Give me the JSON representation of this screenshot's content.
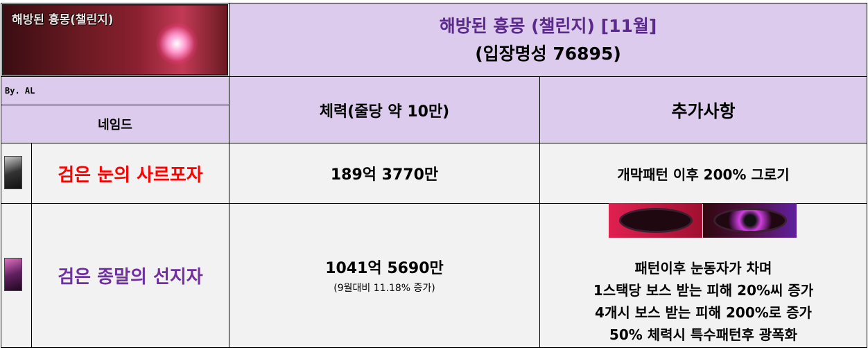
{
  "header": {
    "banner_text": "해방된 흉몽(챌린지)",
    "title": "해방된 흉몽 (챌린지) [11월]",
    "subtitle": "(입장명성 76895)",
    "author": "By. AL",
    "col_name": "네임드",
    "col_hp": "체력(줄당 약 10만)",
    "col_extra": "추가사항"
  },
  "colors": {
    "header_bg": "#dccbec",
    "title": "#5b2a8c",
    "boss1": "#ff0000",
    "boss2": "#7030a0",
    "body_bg": "#f2f2f2"
  },
  "rows": [
    {
      "name": "검은 눈의 사르포자",
      "hp": "189억 3770만",
      "extra": "개막패턴 이후 200% 그로기"
    },
    {
      "name": "검은 종말의 선지자",
      "hp": "1041억 5690만",
      "hp_note": "(9월대비 11.18% 증가)",
      "extra_lines": [
        "패턴이후 눈동자가 차며",
        "1스택당 보스 받는 피해 20%씨 증가",
        "4개시 보스 받는 피해 200%로 증가",
        "50% 체력시 특수패턴후 광폭화"
      ]
    }
  ]
}
